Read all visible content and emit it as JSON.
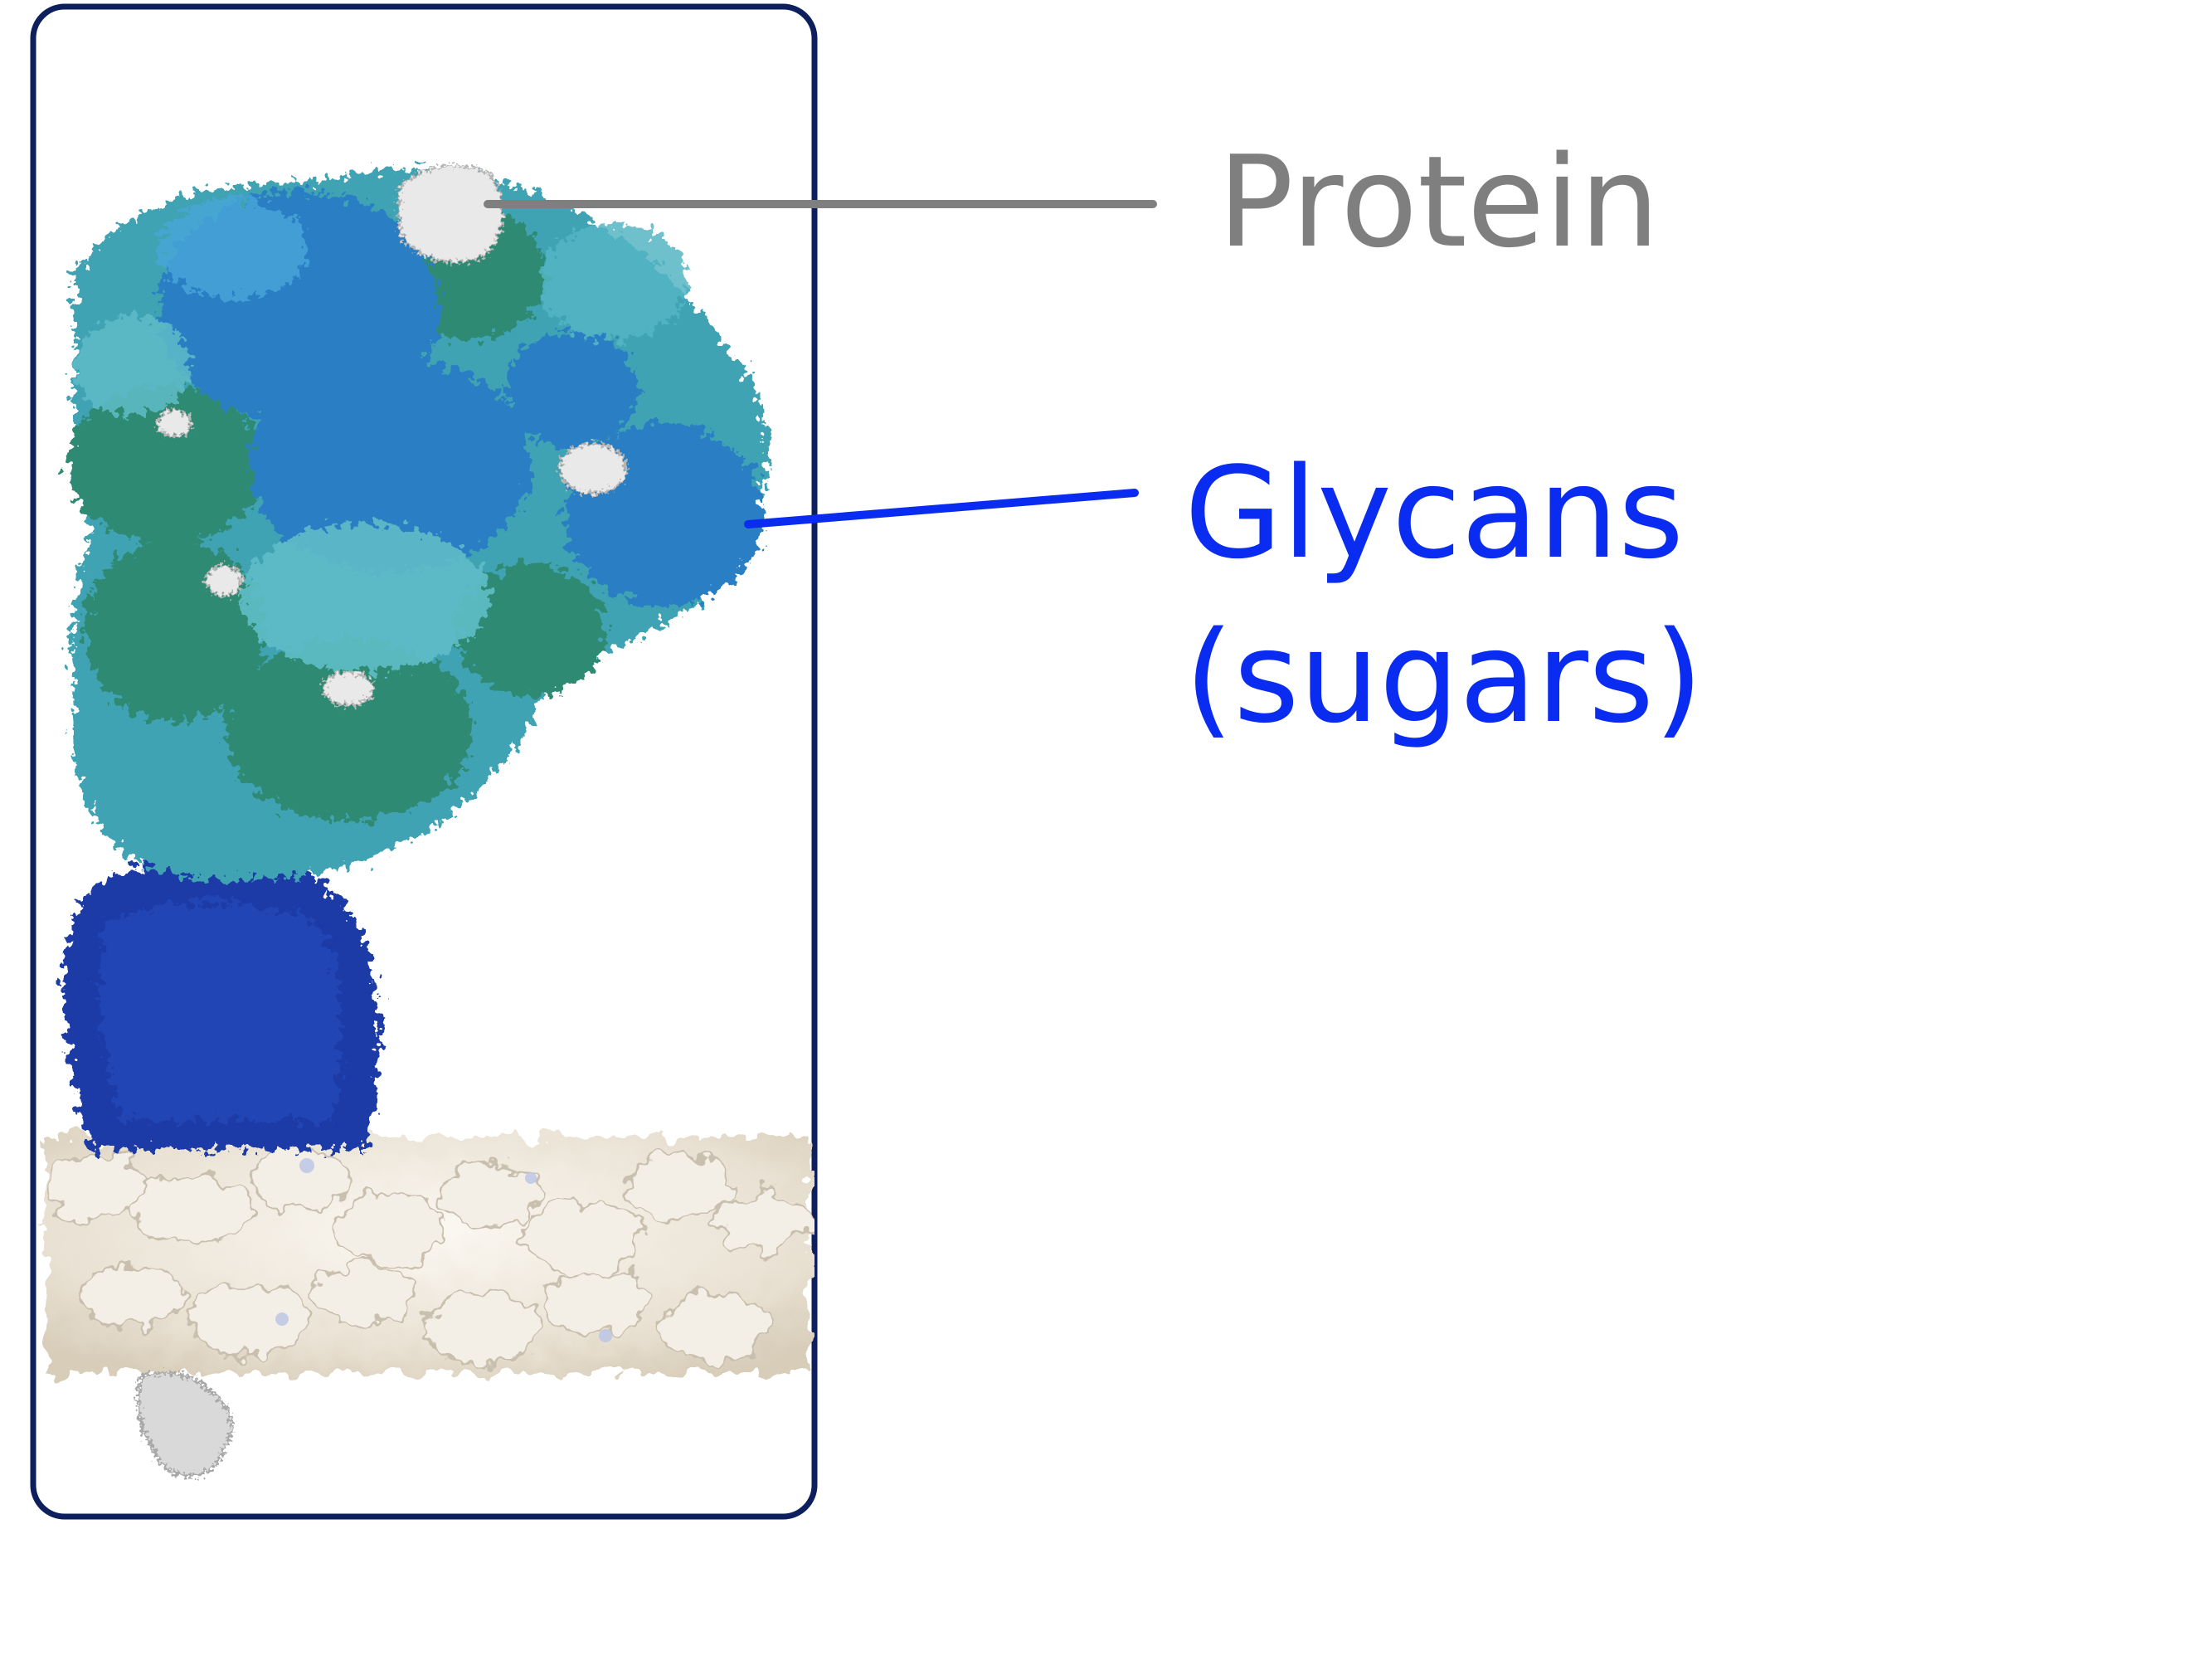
{
  "labels": {
    "protein": "Protein",
    "glycans_line1": "Glycans",
    "glycans_line2": "(sugars)"
  },
  "colors": {
    "frame": "#0d1f5c",
    "protein_label": "#7f7f7f",
    "glycans_label": "#0a2cf0",
    "glycan_dark_blue": "#1a3aa6",
    "glycan_blue": "#2b7fc4",
    "glycan_teal": "#3fa3b3",
    "glycan_green": "#2e8a72",
    "protein_surface": "#e6e6e6",
    "membrane": "#ece6da"
  }
}
